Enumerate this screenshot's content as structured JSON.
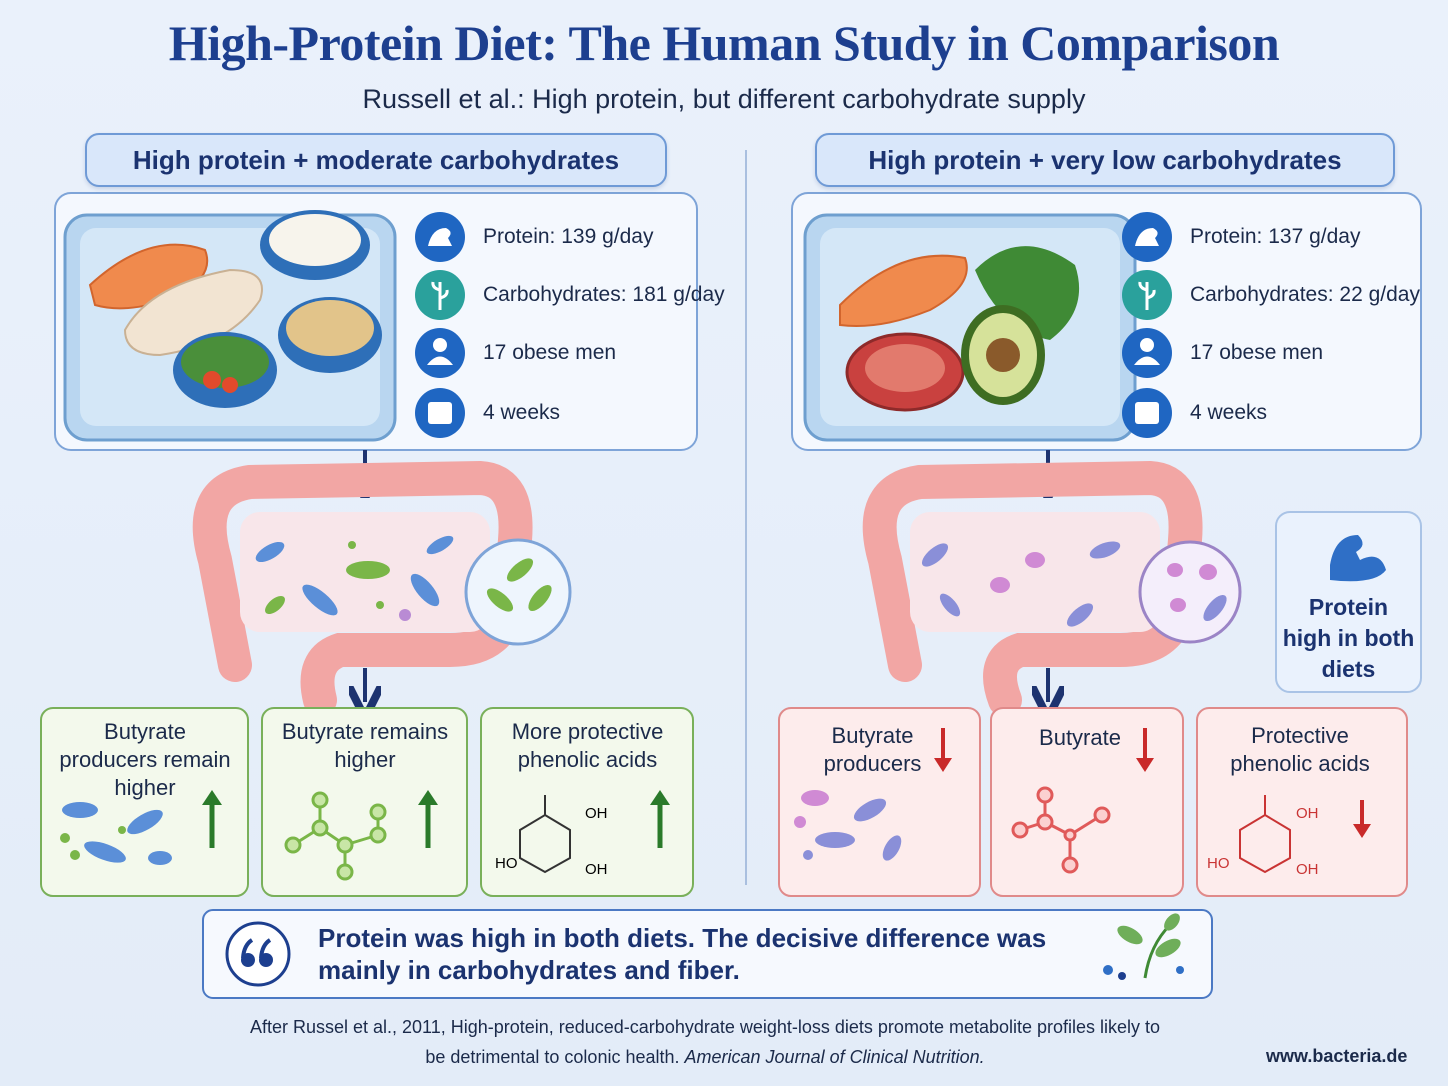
{
  "header": {
    "title": "High-Protein Diet: The Human Study in Comparison",
    "subtitle": "Russell et al.: High protein, but different carbohydrate supply"
  },
  "panels": [
    {
      "heading": "High protein + moderate carbohydrates",
      "facts": [
        "Protein: 139 g/day",
        "Carbohydrates: 181 g/day",
        "17 obese men",
        "4 weeks"
      ],
      "outcomes": [
        {
          "label": "Butyrate producers remain higher"
        },
        {
          "label": "Butyrate remains higher"
        },
        {
          "label": "More protective phenolic acids",
          "atoms": [
            "OH",
            "HO",
            "OH"
          ]
        }
      ]
    },
    {
      "heading": "High protein + very low carbohydrates",
      "facts": [
        "Protein: 137 g/day",
        "Carbohydrates: 22 g/day",
        "17 obese men",
        "4 weeks"
      ],
      "outcomes": [
        {
          "label": "Butyrate producers"
        },
        {
          "label": "Butyrate"
        },
        {
          "label": "Protective phenolic acids",
          "atoms": [
            "OH",
            "HO",
            "OH"
          ]
        }
      ],
      "note": "Protein high in both diets"
    }
  ],
  "quote": "Protein was high in both diets. The decisive difference was mainly in carbohydrates and fiber.",
  "citation": {
    "text": "After Russel et al., 2011, High-protein, reduced-carbohydrate weight-loss diets promote metabolite profiles likely to be detrimental to colonic health.",
    "journal": "American Journal of Clinical Nutrition."
  },
  "website": "www.bacteria.de"
}
